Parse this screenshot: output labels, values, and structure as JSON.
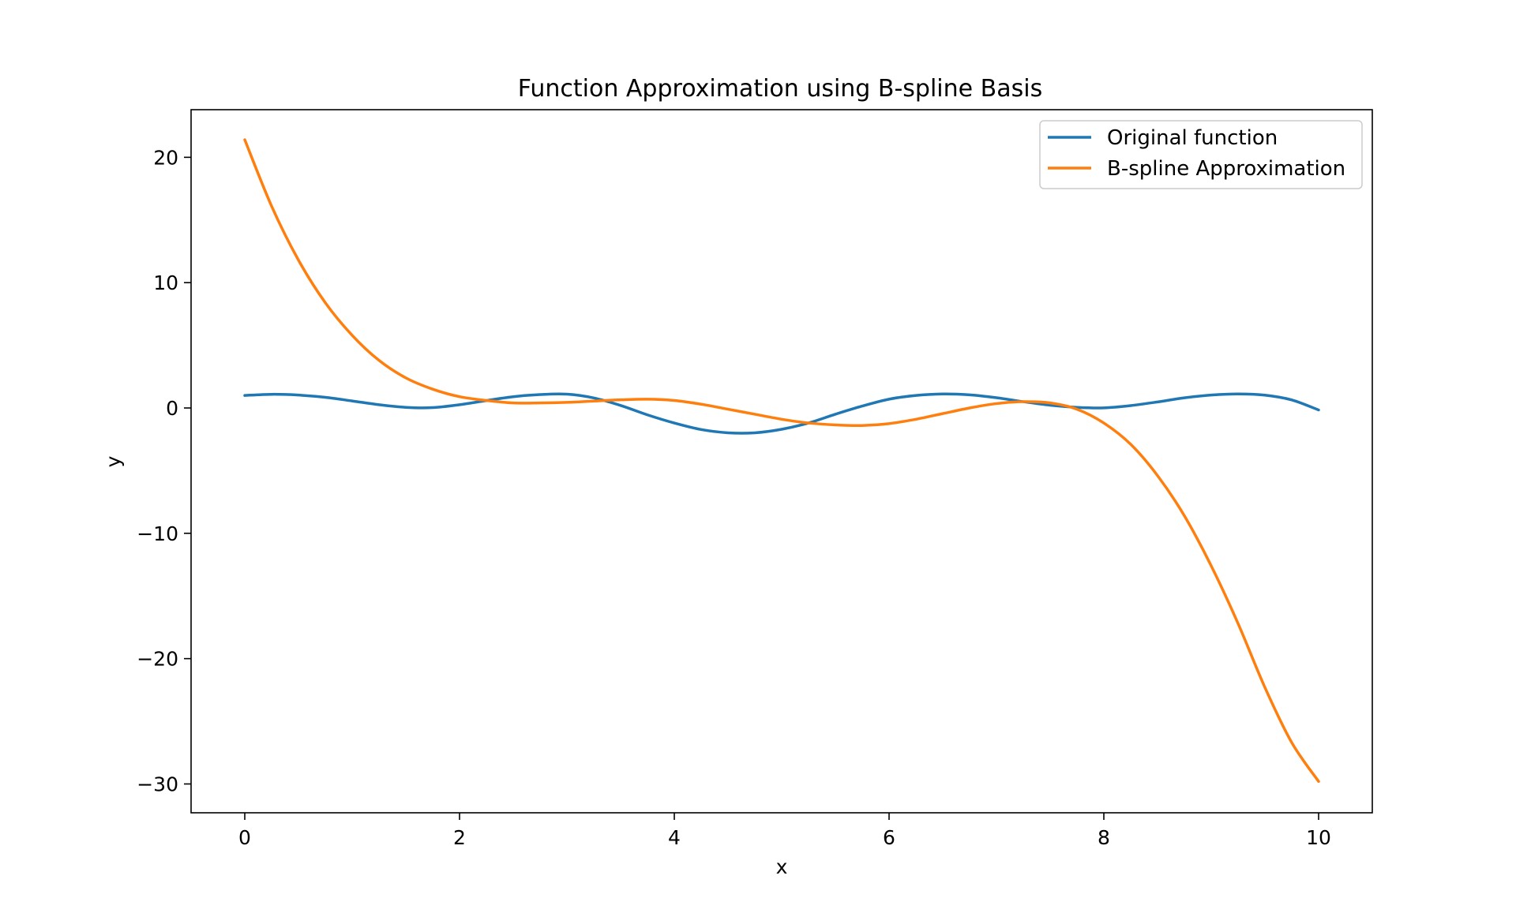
{
  "chart_data": {
    "type": "line",
    "title": "Function Approximation using B-spline Basis",
    "xlabel": "x",
    "ylabel": "y",
    "xlim": [
      -0.5,
      10.5
    ],
    "ylim": [
      -32.3,
      23.8
    ],
    "x_ticks": [
      0,
      2,
      4,
      6,
      8,
      10
    ],
    "x_tick_labels": [
      "0",
      "2",
      "4",
      "6",
      "8",
      "10"
    ],
    "y_ticks": [
      20,
      10,
      0,
      -10,
      -20,
      -30
    ],
    "y_tick_labels": [
      "20",
      "10",
      "0",
      "−10",
      "−20",
      "−30"
    ],
    "grid": false,
    "legend_position": "top-right",
    "series": [
      {
        "name": "Original function",
        "color": "#1f77b4",
        "x": [
          0,
          0.25,
          0.5,
          0.75,
          1,
          1.25,
          1.5,
          1.75,
          2,
          2.25,
          2.5,
          2.75,
          3,
          3.25,
          3.5,
          3.75,
          4,
          4.25,
          4.5,
          4.75,
          5,
          5.25,
          5.5,
          5.75,
          6,
          6.25,
          6.5,
          6.75,
          7,
          7.25,
          7.5,
          7.75,
          8,
          8.25,
          8.5,
          8.75,
          9,
          9.25,
          9.5,
          9.75,
          10
        ],
        "y": [
          1.0,
          1.09,
          1.03,
          0.85,
          0.56,
          0.26,
          0.05,
          0.03,
          0.26,
          0.59,
          0.9,
          1.07,
          1.1,
          0.8,
          0.2,
          -0.55,
          -1.2,
          -1.72,
          -1.98,
          -1.98,
          -1.7,
          -1.2,
          -0.5,
          0.15,
          0.7,
          1.0,
          1.12,
          1.05,
          0.82,
          0.5,
          0.22,
          0.05,
          0.01,
          0.19,
          0.48,
          0.81,
          1.03,
          1.12,
          1.02,
          0.64,
          -0.16
        ]
      },
      {
        "name": "B-spline Approximation",
        "color": "#ff7f0e",
        "x": [
          0,
          0.25,
          0.5,
          0.75,
          1,
          1.25,
          1.5,
          1.75,
          2,
          2.25,
          2.5,
          2.75,
          3,
          3.25,
          3.5,
          3.75,
          4,
          4.25,
          4.5,
          4.75,
          5,
          5.25,
          5.5,
          5.75,
          6,
          6.25,
          6.5,
          6.75,
          7,
          7.25,
          7.5,
          7.75,
          8,
          8.25,
          8.5,
          8.75,
          9,
          9.25,
          9.5,
          9.75,
          10
        ],
        "y": [
          21.4,
          16.1,
          11.8,
          8.4,
          5.8,
          3.8,
          2.4,
          1.5,
          0.9,
          0.6,
          0.4,
          0.4,
          0.45,
          0.55,
          0.65,
          0.7,
          0.6,
          0.3,
          -0.1,
          -0.5,
          -0.9,
          -1.2,
          -1.35,
          -1.4,
          -1.25,
          -0.9,
          -0.45,
          0.0,
          0.35,
          0.5,
          0.4,
          -0.1,
          -1.2,
          -2.9,
          -5.4,
          -8.6,
          -12.6,
          -17.2,
          -22.3,
          -26.7,
          -29.8
        ]
      }
    ]
  }
}
